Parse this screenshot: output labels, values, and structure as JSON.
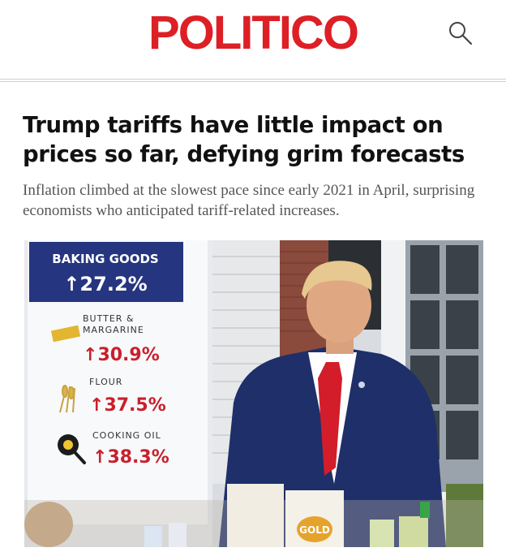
{
  "masthead": {
    "logo_text": "POLITICO",
    "brand_color": "#dd1f26",
    "search_icon": "search-icon"
  },
  "article": {
    "headline": "Trump tariffs have little impact on prices so far, defying grim forecasts",
    "dek": "Inflation climbed at the slowest pace since early 2021 in April, surprising economists who anticipated tariff-related increases."
  },
  "photo": {
    "sign": {
      "heading": "BAKING GOODS",
      "heading_value": "27.2%",
      "items": [
        {
          "label_line1": "BUTTER &",
          "label_line2": "MARGARINE",
          "value": "30.9%",
          "icon": "butter-icon"
        },
        {
          "label_line1": "FLOUR",
          "label_line2": "",
          "value": "37.5%",
          "icon": "wheat-icon"
        },
        {
          "label_line1": "COOKING OIL",
          "label_line2": "",
          "value": "38.3%",
          "icon": "frying-pan-icon"
        }
      ],
      "arrow_glyph": "↑"
    },
    "product_label": "GOLD"
  }
}
